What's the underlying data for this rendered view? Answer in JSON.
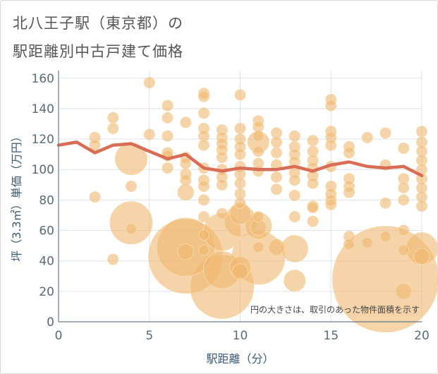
{
  "title": {
    "line1": "北八王子駅（東京都）の",
    "line2": "駅距離別中古戸建て価格"
  },
  "colors": {
    "bubble": "#f0b870",
    "bubble_stroke": "#f6d7a8",
    "line": "#d86c55",
    "grid": "#dde3ea",
    "axis": "#6b7b8c"
  },
  "chart_data": {
    "type": "scatter",
    "xlabel": "駅距離（分）",
    "ylabel": "坪（3.3㎡）単価（万円）",
    "xlim": [
      0,
      20
    ],
    "ylim": [
      0,
      165
    ],
    "xticks": [
      0,
      5,
      10,
      15,
      20
    ],
    "yticks": [
      0,
      20,
      40,
      60,
      80,
      100,
      120,
      140,
      160
    ],
    "note": "円の大きさは、取引のあった物件面積を示す",
    "trend_line": {
      "x": [
        0,
        1,
        2,
        3,
        4,
        5,
        6,
        7,
        8,
        9,
        10,
        11,
        12,
        13,
        14,
        15,
        16,
        17,
        18,
        19,
        20
      ],
      "y": [
        116,
        118,
        111,
        116,
        117,
        112,
        107,
        110,
        101,
        99,
        101,
        100,
        100,
        102,
        99,
        103,
        105,
        102,
        101,
        102,
        96
      ]
    },
    "points": [
      {
        "x": 2,
        "y": 121,
        "s": 1
      },
      {
        "x": 2,
        "y": 116,
        "s": 1
      },
      {
        "x": 2,
        "y": 82,
        "s": 1
      },
      {
        "x": 3,
        "y": 134,
        "s": 1
      },
      {
        "x": 3,
        "y": 127,
        "s": 1
      },
      {
        "x": 3,
        "y": 41,
        "s": 1
      },
      {
        "x": 4,
        "y": 107,
        "s": 3
      },
      {
        "x": 4,
        "y": 89,
        "s": 1
      },
      {
        "x": 4,
        "y": 65,
        "s": 4
      },
      {
        "x": 4,
        "y": 61,
        "s": 1
      },
      {
        "x": 5,
        "y": 157,
        "s": 1
      },
      {
        "x": 5,
        "y": 123,
        "s": 1
      },
      {
        "x": 6,
        "y": 142,
        "s": 1
      },
      {
        "x": 6,
        "y": 134,
        "s": 1
      },
      {
        "x": 6,
        "y": 122,
        "s": 1
      },
      {
        "x": 6,
        "y": 111,
        "s": 1
      },
      {
        "x": 6,
        "y": 109,
        "s": 1
      },
      {
        "x": 6,
        "y": 101,
        "s": 1
      },
      {
        "x": 7,
        "y": 131,
        "s": 1
      },
      {
        "x": 7,
        "y": 108,
        "s": 1
      },
      {
        "x": 7,
        "y": 104,
        "s": 1
      },
      {
        "x": 7,
        "y": 97,
        "s": 1
      },
      {
        "x": 7,
        "y": 93,
        "s": 1
      },
      {
        "x": 7,
        "y": 85,
        "s": 1.5
      },
      {
        "x": 7,
        "y": 49,
        "s": 5.5
      },
      {
        "x": 7,
        "y": 46,
        "s": 1.5
      },
      {
        "x": 7,
        "y": 43,
        "s": 7
      },
      {
        "x": 8,
        "y": 150,
        "s": 1
      },
      {
        "x": 8,
        "y": 148,
        "s": 1
      },
      {
        "x": 8,
        "y": 137,
        "s": 1
      },
      {
        "x": 8,
        "y": 127,
        "s": 1
      },
      {
        "x": 8,
        "y": 122,
        "s": 1
      },
      {
        "x": 8,
        "y": 116,
        "s": 1
      },
      {
        "x": 8,
        "y": 101,
        "s": 1
      },
      {
        "x": 8,
        "y": 93,
        "s": 1
      },
      {
        "x": 8,
        "y": 89,
        "s": 1
      },
      {
        "x": 8,
        "y": 80,
        "s": 1
      },
      {
        "x": 8,
        "y": 69,
        "s": 1
      },
      {
        "x": 8,
        "y": 57,
        "s": 1
      },
      {
        "x": 8,
        "y": 47,
        "s": 1
      },
      {
        "x": 9,
        "y": 126,
        "s": 1
      },
      {
        "x": 9,
        "y": 121,
        "s": 1
      },
      {
        "x": 9,
        "y": 117,
        "s": 1
      },
      {
        "x": 9,
        "y": 113,
        "s": 1
      },
      {
        "x": 9,
        "y": 108,
        "s": 1
      },
      {
        "x": 9,
        "y": 100,
        "s": 1
      },
      {
        "x": 9,
        "y": 95,
        "s": 1
      },
      {
        "x": 9,
        "y": 90,
        "s": 1
      },
      {
        "x": 9,
        "y": 71,
        "s": 1
      },
      {
        "x": 9,
        "y": 59,
        "s": 3.5
      },
      {
        "x": 9,
        "y": 34,
        "s": 3.5
      },
      {
        "x": 9,
        "y": 23,
        "s": 6
      },
      {
        "x": 10,
        "y": 149,
        "s": 1
      },
      {
        "x": 10,
        "y": 127,
        "s": 1
      },
      {
        "x": 10,
        "y": 120,
        "s": 1
      },
      {
        "x": 10,
        "y": 115,
        "s": 1
      },
      {
        "x": 10,
        "y": 110,
        "s": 1
      },
      {
        "x": 10,
        "y": 102,
        "s": 1
      },
      {
        "x": 10,
        "y": 97,
        "s": 1
      },
      {
        "x": 10,
        "y": 91,
        "s": 1
      },
      {
        "x": 10,
        "y": 84,
        "s": 1
      },
      {
        "x": 10,
        "y": 78,
        "s": 1
      },
      {
        "x": 10,
        "y": 71,
        "s": 2
      },
      {
        "x": 10,
        "y": 66,
        "s": 3
      },
      {
        "x": 10,
        "y": 36,
        "s": 2
      },
      {
        "x": 10,
        "y": 33,
        "s": 1.5
      },
      {
        "x": 11,
        "y": 132,
        "s": 1
      },
      {
        "x": 11,
        "y": 128,
        "s": 1
      },
      {
        "x": 11,
        "y": 122,
        "s": 1
      },
      {
        "x": 11,
        "y": 118,
        "s": 2
      },
      {
        "x": 11,
        "y": 112,
        "s": 1
      },
      {
        "x": 11,
        "y": 104,
        "s": 1
      },
      {
        "x": 11,
        "y": 99,
        "s": 1
      },
      {
        "x": 11,
        "y": 69,
        "s": 1
      },
      {
        "x": 11,
        "y": 63,
        "s": 2.5
      },
      {
        "x": 11,
        "y": 62,
        "s": 1.5
      },
      {
        "x": 11,
        "y": 49,
        "s": 1
      },
      {
        "x": 11,
        "y": 42,
        "s": 5
      },
      {
        "x": 12,
        "y": 124,
        "s": 1
      },
      {
        "x": 12,
        "y": 118,
        "s": 1
      },
      {
        "x": 12,
        "y": 111,
        "s": 1
      },
      {
        "x": 12,
        "y": 103,
        "s": 1
      },
      {
        "x": 12,
        "y": 95,
        "s": 1
      },
      {
        "x": 12,
        "y": 87,
        "s": 1
      },
      {
        "x": 12,
        "y": 49,
        "s": 1.5
      },
      {
        "x": 13,
        "y": 122,
        "s": 1
      },
      {
        "x": 13,
        "y": 115,
        "s": 1
      },
      {
        "x": 13,
        "y": 110,
        "s": 1
      },
      {
        "x": 13,
        "y": 105,
        "s": 1
      },
      {
        "x": 13,
        "y": 98,
        "s": 1
      },
      {
        "x": 13,
        "y": 93,
        "s": 1
      },
      {
        "x": 13,
        "y": 83,
        "s": 1
      },
      {
        "x": 13,
        "y": 69,
        "s": 1
      },
      {
        "x": 13,
        "y": 48,
        "s": 2.5
      },
      {
        "x": 13,
        "y": 27,
        "s": 2
      },
      {
        "x": 14,
        "y": 119,
        "s": 1
      },
      {
        "x": 14,
        "y": 112,
        "s": 1
      },
      {
        "x": 14,
        "y": 106,
        "s": 1
      },
      {
        "x": 14,
        "y": 101,
        "s": 1
      },
      {
        "x": 14,
        "y": 96,
        "s": 1
      },
      {
        "x": 14,
        "y": 91,
        "s": 1
      },
      {
        "x": 14,
        "y": 76,
        "s": 1
      },
      {
        "x": 14,
        "y": 75,
        "s": 1
      },
      {
        "x": 14,
        "y": 66,
        "s": 1
      },
      {
        "x": 15,
        "y": 146,
        "s": 1
      },
      {
        "x": 15,
        "y": 142,
        "s": 1
      },
      {
        "x": 15,
        "y": 125,
        "s": 1
      },
      {
        "x": 15,
        "y": 121,
        "s": 1
      },
      {
        "x": 15,
        "y": 116,
        "s": 1
      },
      {
        "x": 15,
        "y": 102,
        "s": 1
      },
      {
        "x": 15,
        "y": 89,
        "s": 1
      },
      {
        "x": 15,
        "y": 84,
        "s": 1
      },
      {
        "x": 15,
        "y": 80,
        "s": 1
      },
      {
        "x": 15,
        "y": 77,
        "s": 1
      },
      {
        "x": 16,
        "y": 115,
        "s": 1
      },
      {
        "x": 16,
        "y": 111,
        "s": 1
      },
      {
        "x": 16,
        "y": 94,
        "s": 1
      },
      {
        "x": 16,
        "y": 89,
        "s": 1
      },
      {
        "x": 16,
        "y": 85,
        "s": 1
      },
      {
        "x": 16,
        "y": 56,
        "s": 1
      },
      {
        "x": 16,
        "y": 51,
        "s": 1
      },
      {
        "x": 17,
        "y": 121,
        "s": 1
      },
      {
        "x": 17,
        "y": 52,
        "s": 1
      },
      {
        "x": 18,
        "y": 124,
        "s": 1
      },
      {
        "x": 18,
        "y": 103,
        "s": 1
      },
      {
        "x": 18,
        "y": 78,
        "s": 1
      },
      {
        "x": 18,
        "y": 56,
        "s": 1
      },
      {
        "x": 18,
        "y": 28,
        "s": 10
      },
      {
        "x": 19,
        "y": 114,
        "s": 1
      },
      {
        "x": 19,
        "y": 94,
        "s": 1
      },
      {
        "x": 19,
        "y": 88,
        "s": 1
      },
      {
        "x": 19,
        "y": 80,
        "s": 1
      },
      {
        "x": 19,
        "y": 60,
        "s": 1
      },
      {
        "x": 19,
        "y": 47,
        "s": 1
      },
      {
        "x": 19,
        "y": 20,
        "s": 1.5
      },
      {
        "x": 20,
        "y": 125,
        "s": 1
      },
      {
        "x": 20,
        "y": 118,
        "s": 1
      },
      {
        "x": 20,
        "y": 112,
        "s": 1
      },
      {
        "x": 20,
        "y": 106,
        "s": 1
      },
      {
        "x": 20,
        "y": 100,
        "s": 1
      },
      {
        "x": 20,
        "y": 94,
        "s": 1
      },
      {
        "x": 20,
        "y": 88,
        "s": 1
      },
      {
        "x": 20,
        "y": 82,
        "s": 1
      },
      {
        "x": 20,
        "y": 76,
        "s": 1
      },
      {
        "x": 20,
        "y": 48,
        "s": 3
      },
      {
        "x": 20,
        "y": 43,
        "s": 1.5
      }
    ]
  }
}
